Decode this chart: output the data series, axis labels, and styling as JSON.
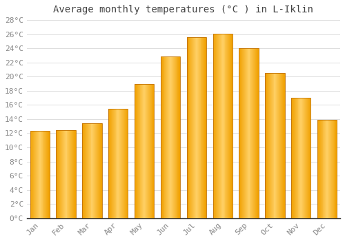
{
  "title": "Average monthly temperatures (°C ) in L-Iklin",
  "months": [
    "Jan",
    "Feb",
    "Mar",
    "Apr",
    "May",
    "Jun",
    "Jul",
    "Aug",
    "Sep",
    "Oct",
    "Nov",
    "Dec"
  ],
  "values": [
    12.3,
    12.4,
    13.4,
    15.5,
    19.0,
    22.8,
    25.6,
    26.1,
    24.0,
    20.5,
    17.0,
    13.9
  ],
  "bar_color_center": "#FFD066",
  "bar_color_edge": "#F0A000",
  "ylim": [
    0,
    28
  ],
  "ytick_step": 2,
  "background_color": "#FFFFFF",
  "plot_bg_color": "#FFFFFF",
  "grid_color": "#DDDDDD",
  "title_fontsize": 10,
  "tick_fontsize": 8,
  "font_family": "monospace",
  "tick_color": "#888888",
  "spine_color": "#333333"
}
